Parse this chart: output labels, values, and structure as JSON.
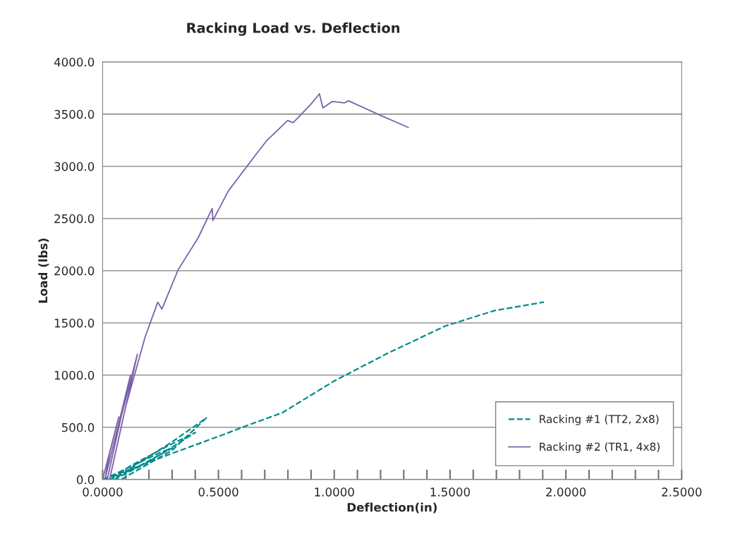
{
  "chart_data": {
    "type": "line",
    "title": "Racking Load vs. Deflection",
    "xlabel": "Deflection(in)",
    "ylabel": "Load (lbs)",
    "xlim": [
      0,
      2.5
    ],
    "ylim": [
      0,
      4000
    ],
    "xticks": [
      {
        "value": 0,
        "label": "0.0000"
      },
      {
        "value": 0.1,
        "label": null
      },
      {
        "value": 0.2,
        "label": null
      },
      {
        "value": 0.3,
        "label": null
      },
      {
        "value": 0.4,
        "label": null
      },
      {
        "value": 0.5,
        "label": "0.5000"
      },
      {
        "value": 0.6,
        "label": null
      },
      {
        "value": 0.7,
        "label": null
      },
      {
        "value": 0.8,
        "label": null
      },
      {
        "value": 0.9,
        "label": null
      },
      {
        "value": 1.0,
        "label": "1.0000"
      },
      {
        "value": 1.1,
        "label": null
      },
      {
        "value": 1.2,
        "label": null
      },
      {
        "value": 1.3,
        "label": null
      },
      {
        "value": 1.4,
        "label": null
      },
      {
        "value": 1.5,
        "label": "1.5000"
      },
      {
        "value": 1.6,
        "label": null
      },
      {
        "value": 1.7,
        "label": null
      },
      {
        "value": 1.8,
        "label": null
      },
      {
        "value": 1.9,
        "label": null
      },
      {
        "value": 2.0,
        "label": "2.0000"
      },
      {
        "value": 2.1,
        "label": null
      },
      {
        "value": 2.2,
        "label": null
      },
      {
        "value": 2.3,
        "label": null
      },
      {
        "value": 2.4,
        "label": null
      },
      {
        "value": 2.5,
        "label": "2.5000"
      }
    ],
    "yticks": [
      {
        "value": 0,
        "label": "0.0"
      },
      {
        "value": 500,
        "label": "500.0"
      },
      {
        "value": 1000,
        "label": "1000.0"
      },
      {
        "value": 1500,
        "label": "1500.0"
      },
      {
        "value": 2000,
        "label": "2000.0"
      },
      {
        "value": 2500,
        "label": "2500.0"
      },
      {
        "value": 3000,
        "label": "3000.0"
      },
      {
        "value": 3500,
        "label": "3500.0"
      },
      {
        "value": 4000,
        "label": "4000.0"
      }
    ],
    "grid": "y",
    "legend": "bottom right",
    "marker": "none",
    "series": [
      {
        "name": "Racking #1 (TT2, 2x8)",
        "color": "#008b8b",
        "line_style": "dashed",
        "x": [
          0,
          0.1,
          0.25,
          0.3,
          0.15,
          0.03,
          0.12,
          0.28,
          0.4,
          0.2,
          0.05,
          0.15,
          0.3,
          0.448,
          0.3,
          0.08,
          0.0,
          0.1,
          0.3,
          0.524,
          0.61,
          0.777,
          1.0,
          1.235,
          1.479,
          1.692,
          1.905
        ],
        "values": [
          0,
          100,
          260,
          300,
          120,
          0,
          130,
          320,
          450,
          170,
          0,
          150,
          360,
          590,
          280,
          0,
          0,
          80,
          250,
          432,
          506,
          641,
          944,
          1214,
          1470,
          1618,
          1699
        ]
      },
      {
        "name": "Racking #2 (TR1, 4x8)",
        "color": "#7b61a8",
        "line_style": "solid",
        "x": [
          0,
          0.07,
          0.03,
          0.01,
          0.06,
          0.12,
          0.07,
          0.02,
          0.08,
          0.15,
          0.1,
          0.03,
          0.1,
          0.183,
          0.238,
          0.256,
          0.326,
          0.412,
          0.473,
          0.476,
          0.543,
          0.665,
          0.71,
          0.799,
          0.823,
          0.899,
          0.936,
          0.951,
          0.991,
          1.043,
          1.061,
          1.195,
          1.32
        ],
        "values": [
          0,
          600,
          250,
          0,
          450,
          1000,
          500,
          0,
          600,
          1200,
          700,
          0,
          700,
          1362,
          1699,
          1632,
          2009,
          2313,
          2596,
          2481,
          2765,
          3122,
          3250,
          3439,
          3419,
          3594,
          3695,
          3560,
          3621,
          3607,
          3628,
          3493,
          3372
        ]
      }
    ]
  }
}
